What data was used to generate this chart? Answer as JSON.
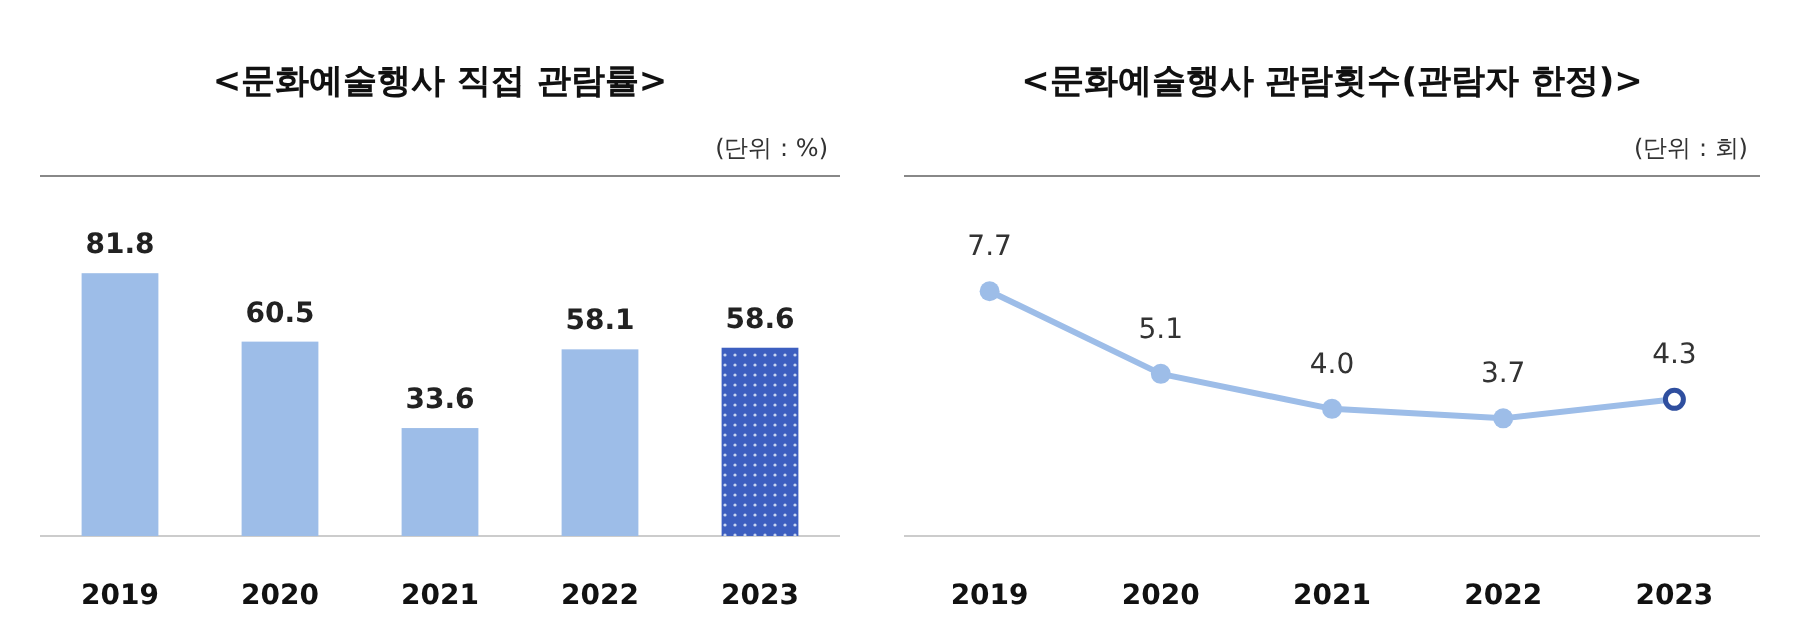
{
  "chart_data": [
    {
      "type": "bar",
      "title": "<문화예술행사 직접 관람률>",
      "annotations": [
        "(단위 : %)"
      ],
      "categories": [
        "2019",
        "2020",
        "2021",
        "2022",
        "2023"
      ],
      "values": [
        81.8,
        60.5,
        33.6,
        58.1,
        58.6
      ],
      "colors": [
        "#9dbde8",
        "#9dbde8",
        "#9dbde8",
        "#9dbde8",
        "#3d5fc0"
      ],
      "data_labels": true
    },
    {
      "type": "line",
      "title": "<문화예술행사 관람횟수(관람자 한정)>",
      "annotations": [
        "(단위 : 회)"
      ],
      "categories": [
        "2019",
        "2020",
        "2021",
        "2022",
        "2023"
      ],
      "values": [
        7.7,
        5.1,
        4.0,
        3.7,
        4.3
      ],
      "value_labels": [
        "7.7",
        "5.1",
        "4.0",
        "3.7",
        "4.3"
      ],
      "color": "#9dbde8",
      "colors": [
        "#9dbde8",
        "#9dbde8",
        "#9dbde8",
        "#9dbde8",
        "#2f4f9f"
      ],
      "marker": "circle"
    }
  ]
}
